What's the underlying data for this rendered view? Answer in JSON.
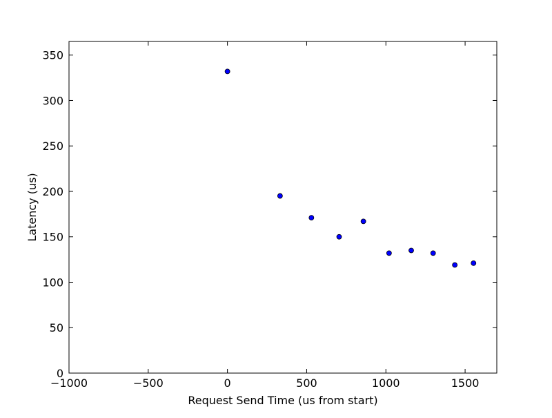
{
  "chart_data": {
    "type": "scatter",
    "title": "",
    "xlabel": "Request Send Time (us from start)",
    "ylabel": "Latency (us)",
    "xlim": [
      -1000,
      1700
    ],
    "ylim": [
      0,
      365
    ],
    "x_ticks": [
      -1000,
      -500,
      0,
      500,
      1000,
      1500
    ],
    "x_tick_labels": [
      "−1000",
      "−500",
      "0",
      "500",
      "1000",
      "1500"
    ],
    "y_ticks": [
      0,
      50,
      100,
      150,
      200,
      250,
      300,
      350
    ],
    "y_tick_labels": [
      "0",
      "50",
      "100",
      "150",
      "200",
      "250",
      "300",
      "350"
    ],
    "grid": false,
    "marker_color": "#0000ff",
    "marker_edge_color": "#000000",
    "series": [
      {
        "x": [
          0,
          332,
          530,
          705,
          858,
          1020,
          1160,
          1298,
          1435,
          1553
        ],
        "y": [
          332,
          195,
          171,
          150,
          167,
          132,
          135,
          132,
          119,
          121
        ]
      }
    ]
  }
}
